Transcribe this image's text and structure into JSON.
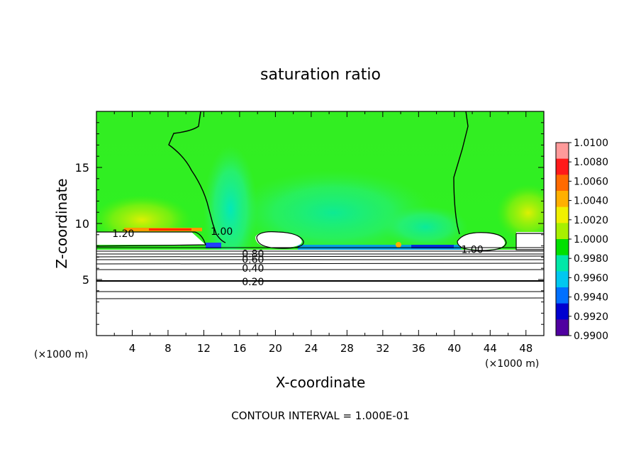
{
  "chart_data": {
    "type": "heatmap",
    "title": "saturation ratio",
    "xlabel": "X-coordinate",
    "ylabel": "Z-coordinate",
    "x_unit_left": "(×1000 m)",
    "x_unit_right": "(×1000 m)",
    "xlim": [
      0,
      50
    ],
    "ylim": [
      0,
      20
    ],
    "x_ticks": [
      4,
      8,
      12,
      16,
      20,
      24,
      28,
      32,
      36,
      40,
      44,
      48
    ],
    "y_ticks": [
      5,
      10,
      15
    ],
    "footer": "CONTOUR INTERVAL = 1.000E-01",
    "colorbar": {
      "labels": [
        "1.0100",
        "1.0080",
        "1.0060",
        "1.0040",
        "1.0020",
        "1.0000",
        "0.9980",
        "0.9960",
        "0.9940",
        "0.9920",
        "0.9900"
      ],
      "colors": [
        "#ff9a9a",
        "#ff1a1a",
        "#ff6a00",
        "#ffb000",
        "#f0f000",
        "#a8f000",
        "#00e000",
        "#00e8a8",
        "#00c8f0",
        "#0070ff",
        "#0000d0",
        "#5000a0"
      ]
    },
    "contour_labels": [
      {
        "text": "1.20",
        "x": 3,
        "z": 9.1
      },
      {
        "text": "1.00",
        "x": 14,
        "z": 9.3
      },
      {
        "text": "1.00",
        "x": 42,
        "z": 7.7
      },
      {
        "text": "0.80",
        "x": 17.5,
        "z": 7.3
      },
      {
        "text": "0.60",
        "x": 17.5,
        "z": 6.8
      },
      {
        "text": "0.40",
        "x": 17.5,
        "z": 6.0
      },
      {
        "text": "0.20",
        "x": 17.5,
        "z": 4.8
      }
    ]
  }
}
